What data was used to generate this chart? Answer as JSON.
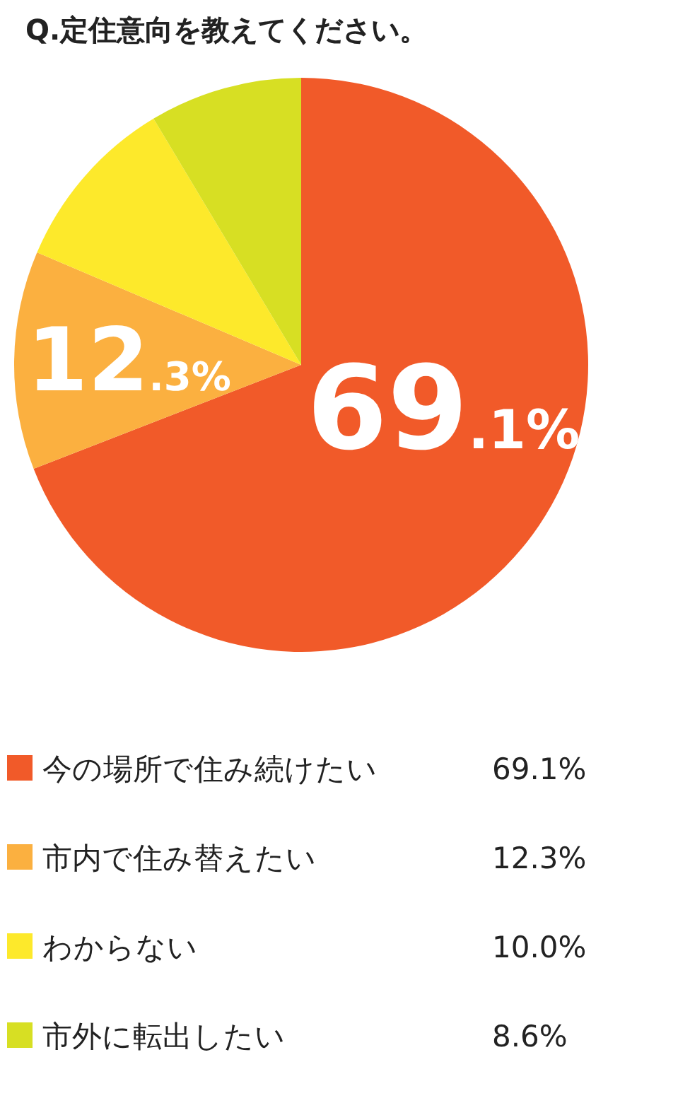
{
  "chart_data": {
    "type": "pie",
    "title": "Q.定住意向を教えてください。",
    "categories": [
      "今の場所で住み続けたい",
      "市内で住み替えたい",
      "わからない",
      "市外に転出したい"
    ],
    "values": [
      69.1,
      12.3,
      10.0,
      8.6
    ],
    "colors": [
      "#f15a29",
      "#fbb040",
      "#fde92b",
      "#d7df23"
    ],
    "value_labels": [
      "69.1%",
      "12.3%",
      "10.0%",
      "8.6%"
    ],
    "legend": "bottom"
  }
}
